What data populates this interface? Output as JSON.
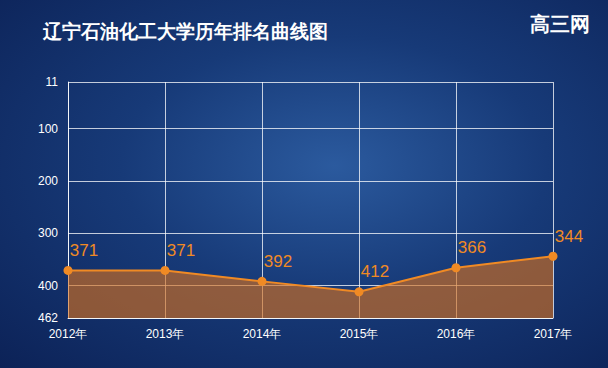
{
  "chart_data": {
    "type": "line",
    "title": "辽宁石油化工大学历年排名曲线图",
    "annotations": [
      "高三网"
    ],
    "categories": [
      "2012年",
      "2013年",
      "2014年",
      "2015年",
      "2016年",
      "2017年"
    ],
    "values": [
      371,
      371,
      392,
      412,
      366,
      344
    ],
    "color": "#f08a24",
    "ylim": [
      11,
      462
    ],
    "yticks": [
      11,
      100,
      200,
      300,
      400,
      462
    ],
    "grid": true,
    "data_labels": true
  }
}
